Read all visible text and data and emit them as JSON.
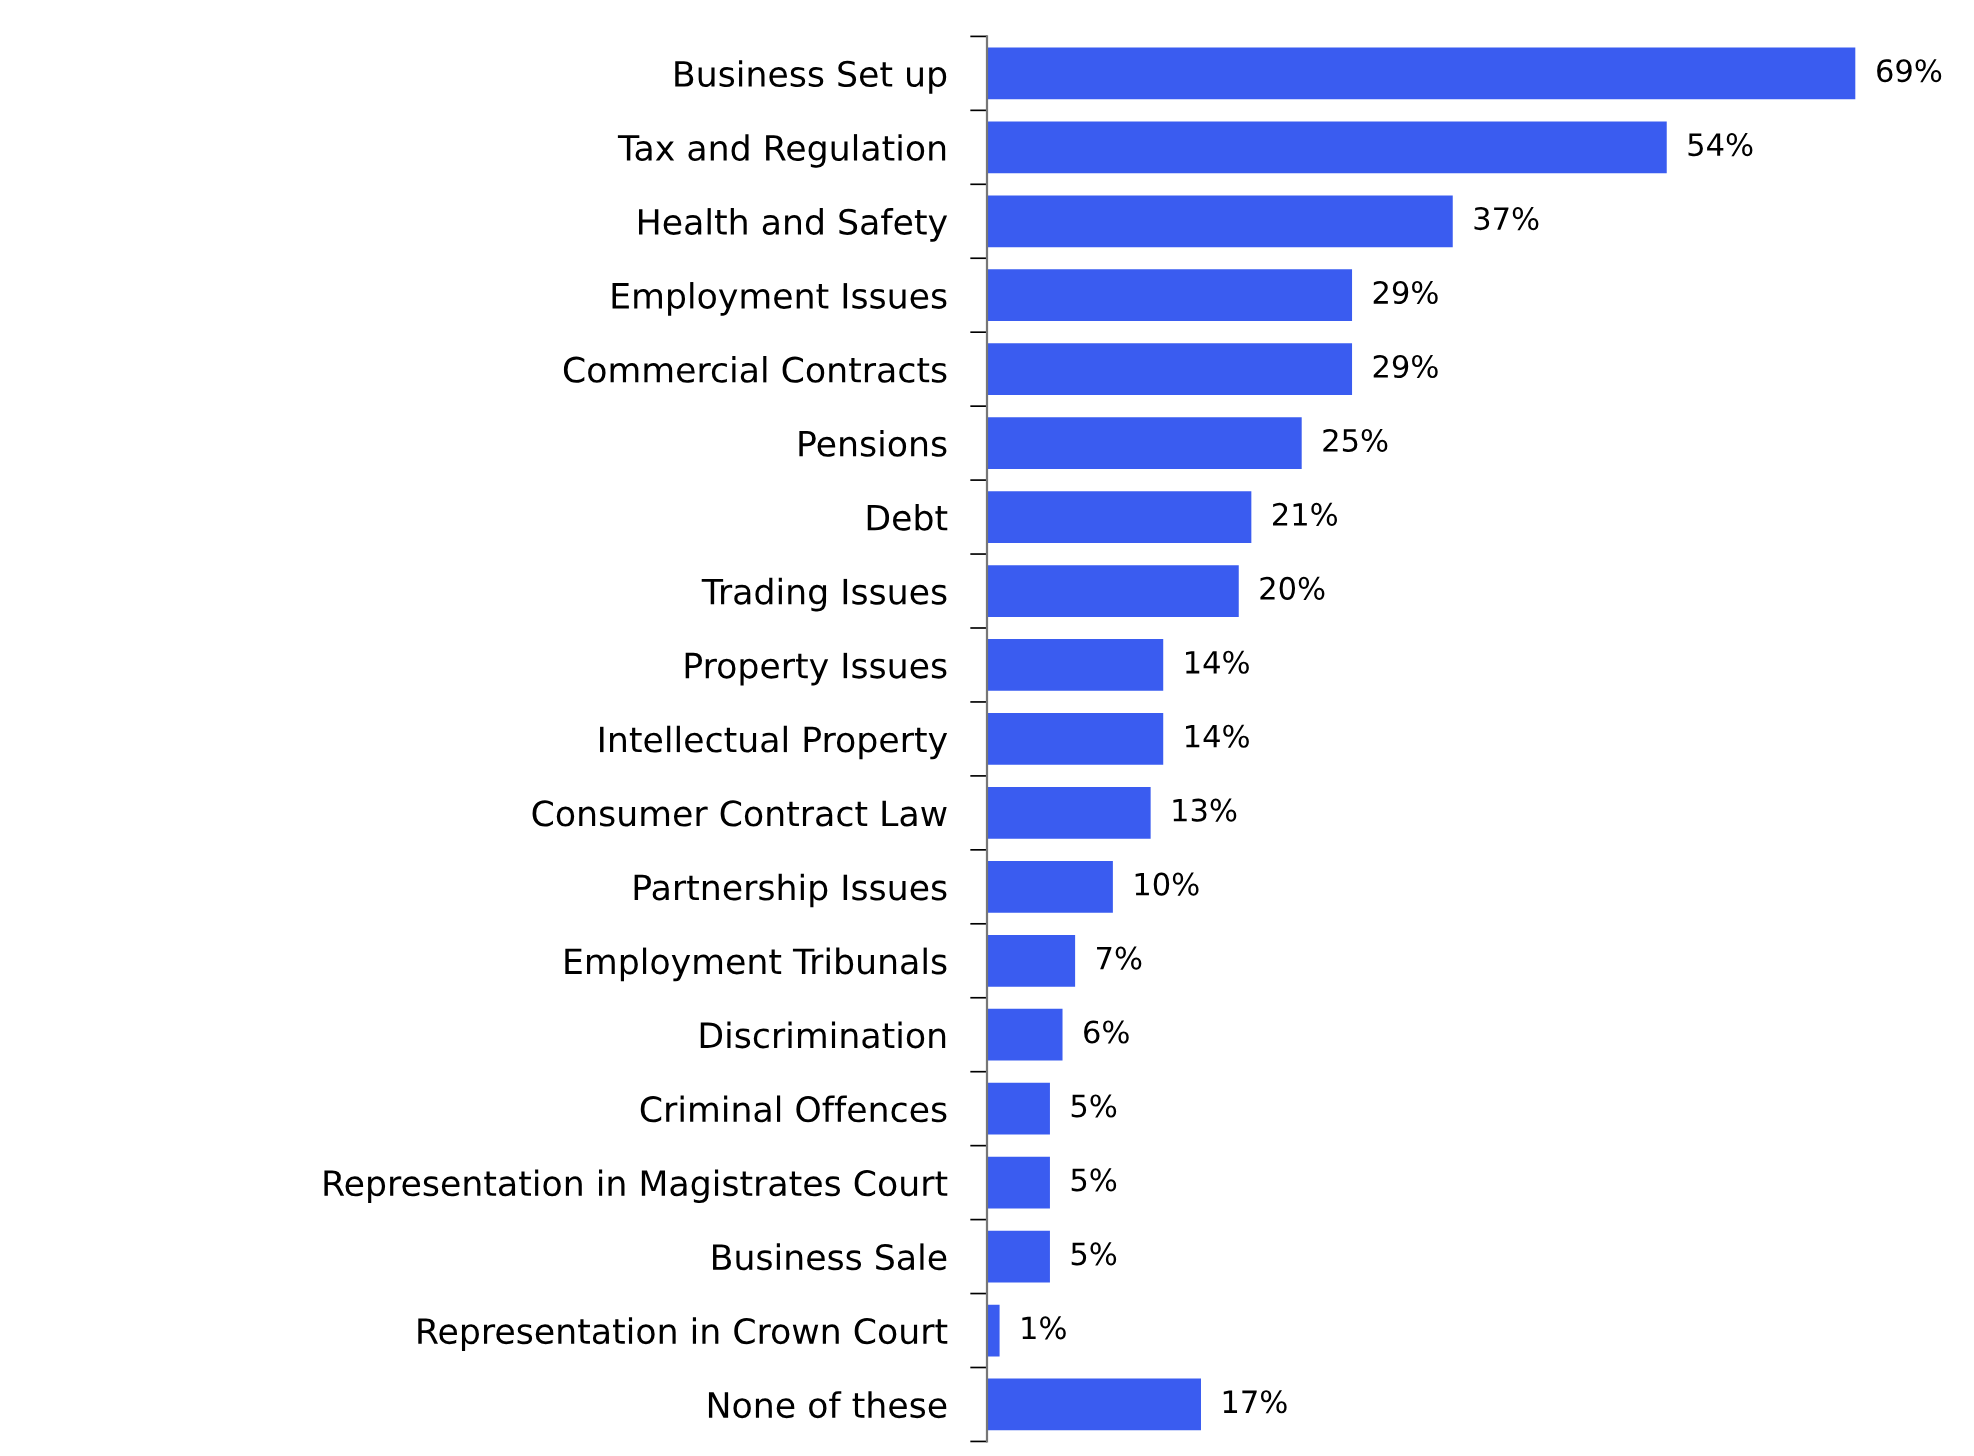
{
  "chart_data": {
    "type": "bar",
    "orientation": "horizontal",
    "categories": [
      "Business Set up",
      "Tax and Regulation",
      "Health and Safety",
      "Employment Issues",
      "Commercial Contracts",
      "Pensions",
      "Debt",
      "Trading Issues",
      "Property Issues",
      "Intellectual Property",
      "Consumer Contract Law",
      "Partnership Issues",
      "Employment Tribunals",
      "Discrimination",
      "Criminal Offences",
      "Representation in Magistrates Court",
      "Business Sale",
      "Representation in Crown Court",
      "None of these"
    ],
    "values": [
      69,
      54,
      37,
      29,
      29,
      25,
      21,
      20,
      14,
      14,
      13,
      10,
      7,
      6,
      5,
      5,
      5,
      1,
      17
    ],
    "value_labels": [
      "69%",
      "54%",
      "37%",
      "29%",
      "29%",
      "25%",
      "21%",
      "20%",
      "14%",
      "14%",
      "13%",
      "10%",
      "7%",
      "6%",
      "5%",
      "5%",
      "5%",
      "1%",
      "17%"
    ],
    "color": "#3a5cf0",
    "grid": false,
    "legend": false
  }
}
